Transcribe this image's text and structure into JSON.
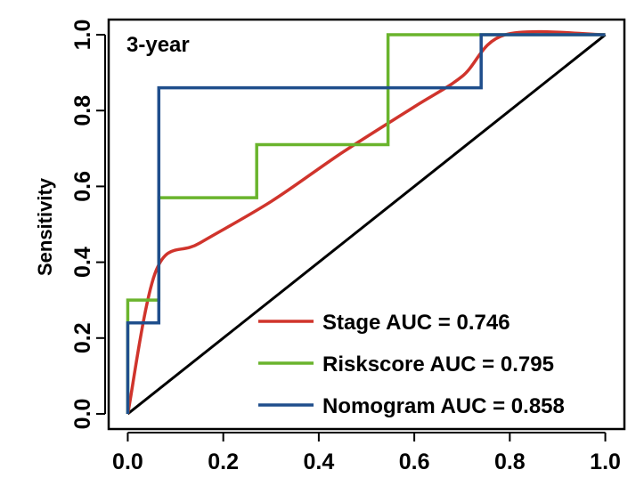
{
  "chart_data": {
    "type": "line",
    "title": "3-year",
    "xlabel": "",
    "ylabel": "Sensitivity",
    "xlim": [
      -0.04,
      1.04
    ],
    "ylim": [
      -0.04,
      1.04
    ],
    "x_ticks": [
      "0.0",
      "0.2",
      "0.4",
      "0.6",
      "0.8",
      "1.0"
    ],
    "y_ticks": [
      "0.0",
      "0.2",
      "0.4",
      "0.6",
      "0.8",
      "1.0"
    ],
    "grid": false,
    "legend_position": "bottom-right",
    "reference_line": {
      "name": "chance",
      "color": "#000000",
      "points": [
        [
          0,
          0
        ],
        [
          1,
          1
        ]
      ]
    },
    "series": [
      {
        "name": "Stage AUC = 0.746",
        "color": "#d0342c",
        "style": "smooth",
        "points": [
          [
            0,
            0
          ],
          [
            0.06,
            0.38
          ],
          [
            0.15,
            0.45
          ],
          [
            0.3,
            0.56
          ],
          [
            0.45,
            0.69
          ],
          [
            0.6,
            0.81
          ],
          [
            0.7,
            0.89
          ],
          [
            0.79,
            1.0
          ],
          [
            1.0,
            1.0
          ]
        ]
      },
      {
        "name": "Riskscore AUC = 0.795",
        "color": "#6ab42d",
        "style": "step",
        "points": [
          [
            0,
            0
          ],
          [
            0,
            0.3
          ],
          [
            0.065,
            0.3
          ],
          [
            0.065,
            0.57
          ],
          [
            0.27,
            0.57
          ],
          [
            0.27,
            0.71
          ],
          [
            0.545,
            0.71
          ],
          [
            0.545,
            1.0
          ],
          [
            1.0,
            1.0
          ]
        ]
      },
      {
        "name": "Nomogram AUC = 0.858",
        "color": "#1f4e8c",
        "style": "step",
        "points": [
          [
            0,
            0
          ],
          [
            0,
            0.24
          ],
          [
            0.065,
            0.24
          ],
          [
            0.065,
            0.86
          ],
          [
            0.74,
            0.86
          ],
          [
            0.74,
            1.0
          ],
          [
            1.0,
            1.0
          ]
        ]
      }
    ]
  }
}
